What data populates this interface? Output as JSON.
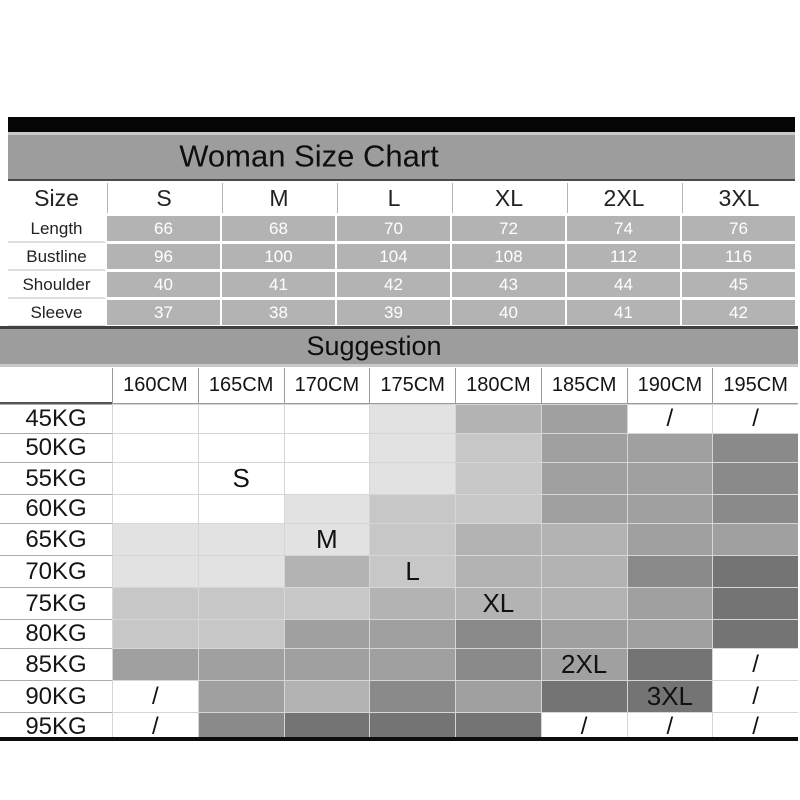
{
  "title": "Woman Size Chart",
  "suggestion_title": "Suggestion",
  "chart_data": [
    {
      "type": "table",
      "title": "Woman Size Chart",
      "columns": [
        "Size",
        "S",
        "M",
        "L",
        "XL",
        "2XL",
        "3XL"
      ],
      "rows": [
        {
          "label": "Length",
          "values": [
            "66",
            "68",
            "70",
            "72",
            "74",
            "76"
          ]
        },
        {
          "label": "Bustline",
          "values": [
            "96",
            "100",
            "104",
            "108",
            "112",
            "116"
          ]
        },
        {
          "label": "Shoulder",
          "values": [
            "40",
            "41",
            "42",
            "43",
            "44",
            "45"
          ]
        },
        {
          "label": "Sleeve",
          "values": [
            "37",
            "38",
            "39",
            "40",
            "41",
            "42"
          ]
        }
      ]
    },
    {
      "type": "heatmap",
      "title": "Suggestion",
      "columns": [
        "160CM",
        "165CM",
        "170CM",
        "175CM",
        "180CM",
        "185CM",
        "190CM",
        "195CM"
      ],
      "row_labels": [
        "45KG",
        "50KG",
        "55KG",
        "60KG",
        "65KG",
        "70KG",
        "75KG",
        "80KG",
        "85KG",
        "90KG",
        "95KG"
      ],
      "cells": [
        [
          {
            "text": "",
            "shade": 0
          },
          {
            "text": "",
            "shade": 0
          },
          {
            "text": "",
            "shade": 0
          },
          {
            "text": "",
            "shade": 1
          },
          {
            "text": "",
            "shade": 3
          },
          {
            "text": "",
            "shade": 4
          },
          {
            "text": "/",
            "shade": 0
          },
          {
            "text": "/",
            "shade": 0
          }
        ],
        [
          {
            "text": "",
            "shade": 0
          },
          {
            "text": "",
            "shade": 0
          },
          {
            "text": "",
            "shade": 0
          },
          {
            "text": "",
            "shade": 1
          },
          {
            "text": "",
            "shade": 2
          },
          {
            "text": "",
            "shade": 4
          },
          {
            "text": "",
            "shade": 4
          },
          {
            "text": "",
            "shade": 5
          }
        ],
        [
          {
            "text": "",
            "shade": 0
          },
          {
            "text": "S",
            "shade": 0
          },
          {
            "text": "",
            "shade": 0
          },
          {
            "text": "",
            "shade": 1
          },
          {
            "text": "",
            "shade": 2
          },
          {
            "text": "",
            "shade": 4
          },
          {
            "text": "",
            "shade": 4
          },
          {
            "text": "",
            "shade": 5
          }
        ],
        [
          {
            "text": "",
            "shade": 0
          },
          {
            "text": "",
            "shade": 0
          },
          {
            "text": "",
            "shade": 1
          },
          {
            "text": "",
            "shade": 2
          },
          {
            "text": "",
            "shade": 2
          },
          {
            "text": "",
            "shade": 4
          },
          {
            "text": "",
            "shade": 4
          },
          {
            "text": "",
            "shade": 5
          }
        ],
        [
          {
            "text": "",
            "shade": 1
          },
          {
            "text": "",
            "shade": 1
          },
          {
            "text": "M",
            "shade": 1
          },
          {
            "text": "",
            "shade": 2
          },
          {
            "text": "",
            "shade": 3
          },
          {
            "text": "",
            "shade": 3
          },
          {
            "text": "",
            "shade": 4
          },
          {
            "text": "",
            "shade": 4
          }
        ],
        [
          {
            "text": "",
            "shade": 1
          },
          {
            "text": "",
            "shade": 1
          },
          {
            "text": "",
            "shade": 3
          },
          {
            "text": "L",
            "shade": 2
          },
          {
            "text": "",
            "shade": 3
          },
          {
            "text": "",
            "shade": 3
          },
          {
            "text": "",
            "shade": 5
          },
          {
            "text": "",
            "shade": 6
          }
        ],
        [
          {
            "text": "",
            "shade": 2
          },
          {
            "text": "",
            "shade": 2
          },
          {
            "text": "",
            "shade": 2
          },
          {
            "text": "",
            "shade": 3
          },
          {
            "text": "XL",
            "shade": 3
          },
          {
            "text": "",
            "shade": 3
          },
          {
            "text": "",
            "shade": 4
          },
          {
            "text": "",
            "shade": 6
          }
        ],
        [
          {
            "text": "",
            "shade": 2
          },
          {
            "text": "",
            "shade": 2
          },
          {
            "text": "",
            "shade": 4
          },
          {
            "text": "",
            "shade": 4
          },
          {
            "text": "",
            "shade": 5
          },
          {
            "text": "",
            "shade": 4
          },
          {
            "text": "",
            "shade": 4
          },
          {
            "text": "",
            "shade": 6
          }
        ],
        [
          {
            "text": "",
            "shade": 4
          },
          {
            "text": "",
            "shade": 4
          },
          {
            "text": "",
            "shade": 4
          },
          {
            "text": "",
            "shade": 4
          },
          {
            "text": "",
            "shade": 5
          },
          {
            "text": "2XL",
            "shade": 4
          },
          {
            "text": "",
            "shade": 6
          },
          {
            "text": "/",
            "shade": 0
          }
        ],
        [
          {
            "text": "/",
            "shade": 0
          },
          {
            "text": "",
            "shade": 4
          },
          {
            "text": "",
            "shade": 3
          },
          {
            "text": "",
            "shade": 5
          },
          {
            "text": "",
            "shade": 4
          },
          {
            "text": "",
            "shade": 6
          },
          {
            "text": "3XL",
            "shade": 6
          },
          {
            "text": "/",
            "shade": 0
          }
        ],
        [
          {
            "text": "/",
            "shade": 0
          },
          {
            "text": "",
            "shade": 5
          },
          {
            "text": "",
            "shade": 6
          },
          {
            "text": "",
            "shade": 6
          },
          {
            "text": "",
            "shade": 6
          },
          {
            "text": "/",
            "shade": 0
          },
          {
            "text": "/",
            "shade": 0
          },
          {
            "text": "/",
            "shade": 0
          }
        ]
      ]
    }
  ],
  "colors": {
    "top_bar": "#060606",
    "band_gray": "#9d9d9d",
    "band_light_edge": "#c9c9c9",
    "value_cell_gray": "#b3b3b3",
    "value_text": "#ffffff",
    "shade_palette": [
      "#ffffff",
      "#e2e2e2",
      "#c7c7c7",
      "#b3b3b3",
      "#a0a0a0",
      "#8a8a8a",
      "#747474"
    ]
  }
}
